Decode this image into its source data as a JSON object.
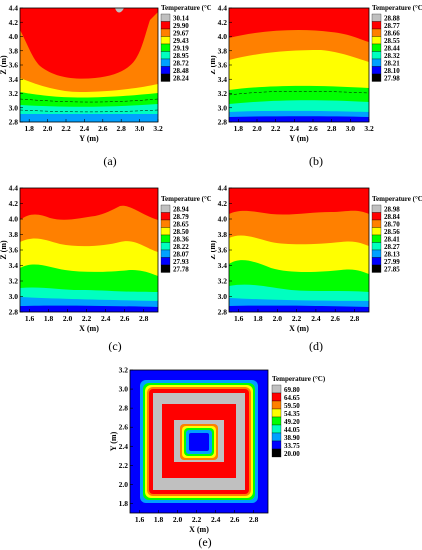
{
  "figure": {
    "legend_title": "Temperature (°C)",
    "panels": [
      {
        "id": "a",
        "caption": "(a)",
        "xlabel": "Y (m)",
        "ylabel": "Z (m)",
        "xticks": [
          "1.8",
          "2.0",
          "2.2",
          "2.4",
          "2.6",
          "2.8",
          "3.0",
          "3.2"
        ],
        "yticks": [
          "2.8",
          "3.0",
          "3.2",
          "3.4",
          "3.6",
          "3.8",
          "4.0",
          "4.2",
          "4.4"
        ],
        "legend": [
          "30.14",
          "29.90",
          "29.67",
          "29.43",
          "29.19",
          "28.95",
          "28.72",
          "28.48",
          "28.24"
        ]
      },
      {
        "id": "b",
        "caption": "(b)",
        "xlabel": "Y (m)",
        "ylabel": "Z (m)",
        "xticks": [
          "1.8",
          "2.0",
          "2.2",
          "2.4",
          "2.6",
          "2.8",
          "3.0",
          "3.2"
        ],
        "yticks": [
          "2.8",
          "3.0",
          "3.2",
          "3.4",
          "3.6",
          "3.8",
          "4.0",
          "4.2",
          "4.4"
        ],
        "legend": [
          "28.88",
          "28.77",
          "28.66",
          "28.55",
          "28.44",
          "28.32",
          "28.21",
          "28.10",
          "27.98"
        ]
      },
      {
        "id": "c",
        "caption": "(c)",
        "xlabel": "X (m)",
        "ylabel": "Z (m)",
        "xticks": [
          "1.6",
          "1.8",
          "2.0",
          "2.2",
          "2.4",
          "2.6",
          "2.8"
        ],
        "yticks": [
          "2.8",
          "3.0",
          "3.2",
          "3.4",
          "3.6",
          "3.8",
          "4.0",
          "4.2",
          "4.4"
        ],
        "legend": [
          "28.94",
          "28.79",
          "28.65",
          "28.50",
          "28.36",
          "28.22",
          "28.07",
          "27.93",
          "27.78"
        ]
      },
      {
        "id": "d",
        "caption": "(d)",
        "xlabel": "X (m)",
        "ylabel": "Z (m)",
        "xticks": [
          "1.6",
          "1.8",
          "2.0",
          "2.2",
          "2.4",
          "2.6",
          "2.8"
        ],
        "yticks": [
          "2.8",
          "3.0",
          "3.2",
          "3.4",
          "3.6",
          "3.8",
          "4.0",
          "4.2",
          "4.4"
        ],
        "legend": [
          "28.98",
          "28.84",
          "28.70",
          "28.56",
          "28.41",
          "28.27",
          "28.13",
          "27.99",
          "27.85"
        ]
      },
      {
        "id": "e",
        "caption": "(e)",
        "xlabel": "X (m)",
        "ylabel": "Y (m)",
        "xticks": [
          "1.6",
          "1.8",
          "2.0",
          "2.2",
          "2.4",
          "2.6",
          "2.8"
        ],
        "yticks": [
          "1.8",
          "2.0",
          "2.2",
          "2.4",
          "2.6",
          "2.8",
          "3.0",
          "3.2"
        ],
        "legend": [
          "69.80",
          "64.65",
          "59.50",
          "54.35",
          "49.20",
          "44.05",
          "38.90",
          "33.75",
          "20.00"
        ]
      }
    ],
    "colormap": [
      "#c0c0c0",
      "#ff0000",
      "#ff8000",
      "#ffff00",
      "#00ff00",
      "#00ffc0",
      "#00a0ff",
      "#0000ff",
      "#000000"
    ]
  },
  "chart_data": [
    {
      "type": "heatmap",
      "panel": "(a)",
      "xlabel": "Y (m)",
      "ylabel": "Z (m)",
      "xlim": [
        1.7,
        3.2
      ],
      "ylim": [
        2.8,
        4.4
      ],
      "levels": [
        30.14,
        29.9,
        29.67,
        29.43,
        29.19,
        28.95,
        28.72,
        28.48,
        28.24
      ],
      "legend_title": "Temperature (°C)",
      "band_tops_z": [
        4.4,
        3.6,
        3.32,
        3.12,
        3.0,
        2.92,
        2.86
      ]
    },
    {
      "type": "heatmap",
      "panel": "(b)",
      "xlabel": "Y (m)",
      "ylabel": "Z (m)",
      "xlim": [
        1.7,
        3.2
      ],
      "ylim": [
        2.8,
        4.4
      ],
      "levels": [
        28.88,
        28.77,
        28.66,
        28.55,
        28.44,
        28.32,
        28.21,
        28.1,
        27.98
      ],
      "legend_title": "Temperature (°C)",
      "band_tops_z": [
        3.95,
        3.65,
        3.3,
        3.1,
        3.0,
        2.92,
        2.86
      ]
    },
    {
      "type": "heatmap",
      "panel": "(c)",
      "xlabel": "X (m)",
      "ylabel": "Z (m)",
      "xlim": [
        1.5,
        2.95
      ],
      "ylim": [
        2.8,
        4.4
      ],
      "levels": [
        28.94,
        28.79,
        28.65,
        28.5,
        28.36,
        28.22,
        28.07,
        27.93,
        27.78
      ],
      "legend_title": "Temperature (°C)",
      "band_tops_z": [
        4.0,
        3.6,
        3.35,
        3.12,
        3.0,
        2.92,
        2.86
      ]
    },
    {
      "type": "heatmap",
      "panel": "(d)",
      "xlabel": "X (m)",
      "ylabel": "Z (m)",
      "xlim": [
        1.5,
        2.95
      ],
      "ylim": [
        2.8,
        4.4
      ],
      "levels": [
        28.98,
        28.84,
        28.7,
        28.56,
        28.41,
        28.27,
        28.13,
        27.99,
        27.85
      ],
      "legend_title": "Temperature (°C)",
      "band_tops_z": [
        4.05,
        3.7,
        3.38,
        3.12,
        3.0,
        2.92,
        2.86
      ]
    },
    {
      "type": "heatmap",
      "panel": "(e)",
      "xlabel": "X (m)",
      "ylabel": "Y (m)",
      "xlim": [
        1.5,
        2.95
      ],
      "ylim": [
        1.7,
        3.2
      ],
      "levels": [
        69.8,
        64.65,
        59.5,
        54.35,
        49.2,
        44.05,
        38.9,
        33.75,
        20.0
      ],
      "legend_title": "Temperature (°C)"
    }
  ]
}
